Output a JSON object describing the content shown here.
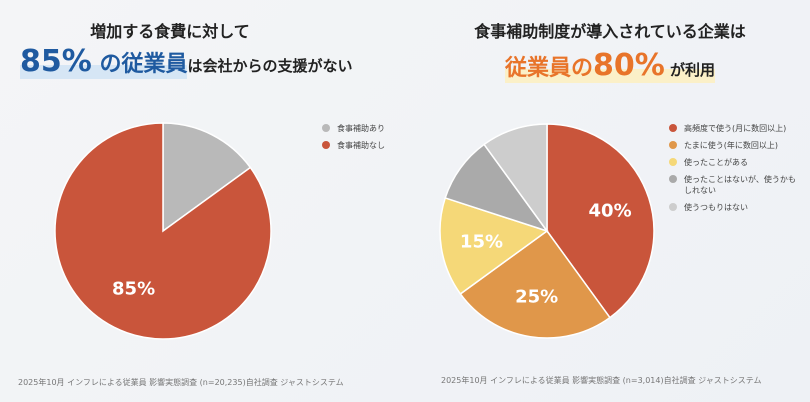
{
  "left": {
    "title": "増加する食費に対して",
    "headline_pct": "85%",
    "headline_mid": " の従業員",
    "headline_rest": "は会社からの支援がない",
    "footer": "2025年10月 インフレによる従業員 影響実態調査 (n=20,235)自社調査 ジャストシステム"
  },
  "right": {
    "title": "食事補助制度が導入されている企業は",
    "headline_pre": "従業員の",
    "headline_pct": "80%",
    "headline_rest": " が利用",
    "footer": "2025年10月 インフレによる従業員 影響実態調査 (n=3,014)自社調査 ジャストシステム"
  },
  "chart_data": [
    {
      "type": "pie",
      "categories": [
        "食事補助あり",
        "食事補助なし"
      ],
      "values": [
        15,
        85
      ],
      "colors": [
        "#b9b9b9",
        "#c9553b"
      ],
      "data_labels": [
        "",
        "85%"
      ],
      "legend": "right"
    },
    {
      "type": "pie",
      "categories": [
        "高頻度で使う(月に数回以上)",
        "たまに使う(年に数回以上)",
        "使ったことがある",
        "使ったことはないが、使うかもしれない",
        "使うつもりはない"
      ],
      "values": [
        40,
        25,
        15,
        10,
        10
      ],
      "colors": [
        "#c9553b",
        "#e0974a",
        "#f5d878",
        "#aaaaaa",
        "#cdcdcd"
      ],
      "data_labels": [
        "40%",
        "25%",
        "15%",
        "",
        ""
      ],
      "legend": "right"
    }
  ]
}
